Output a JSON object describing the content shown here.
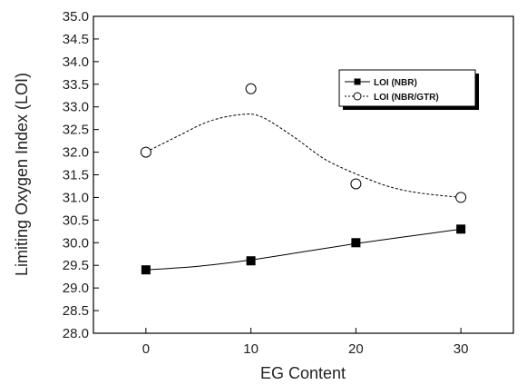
{
  "chart_data": {
    "type": "scatter",
    "title": "",
    "xlabel": "EG Content",
    "ylabel": "Limiting Oxygen Index (LOI)",
    "xlim": [
      -5,
      35
    ],
    "ylim": [
      28.0,
      35.0
    ],
    "xticks": [
      0,
      10,
      20,
      30
    ],
    "xtick_labels": [
      "0",
      "10",
      "20",
      "30"
    ],
    "yticks": [
      28.0,
      28.5,
      29.0,
      29.5,
      30.0,
      30.5,
      31.0,
      31.5,
      32.0,
      32.5,
      33.0,
      33.5,
      34.0,
      34.5,
      35.0
    ],
    "ytick_labels": [
      "28.0",
      "28.5",
      "29.0",
      "29.5",
      "30.0",
      "30.5",
      "31.0",
      "31.5",
      "32.0",
      "32.5",
      "33.0",
      "33.5",
      "34.0",
      "34.5",
      "35.0"
    ],
    "grid": false,
    "legend_position": "top-right",
    "series": [
      {
        "name": "LOI (NBR)",
        "marker": "filled-square",
        "line_style": "solid",
        "x": [
          0,
          10,
          20,
          30
        ],
        "y": [
          29.4,
          29.6,
          30.0,
          30.3
        ],
        "fit_curve": [
          [
            0,
            29.4
          ],
          [
            5,
            29.48
          ],
          [
            10,
            29.62
          ],
          [
            15,
            29.8
          ],
          [
            20,
            29.98
          ],
          [
            25,
            30.14
          ],
          [
            30,
            30.3
          ]
        ]
      },
      {
        "name": "LOI (NBR/GTR)",
        "marker": "open-circle",
        "line_style": "dashed",
        "x": [
          0,
          10,
          20,
          30
        ],
        "y": [
          32.0,
          33.4,
          31.3,
          31.0
        ],
        "fit_curve": [
          [
            0,
            32.0
          ],
          [
            3,
            32.35
          ],
          [
            6,
            32.68
          ],
          [
            9,
            32.83
          ],
          [
            11,
            32.78
          ],
          [
            14,
            32.35
          ],
          [
            17,
            31.85
          ],
          [
            20,
            31.52
          ],
          [
            23,
            31.25
          ],
          [
            26,
            31.1
          ],
          [
            30,
            31.0
          ]
        ]
      }
    ],
    "colors": {
      "ink": "#000000",
      "background": "#ffffff"
    }
  }
}
